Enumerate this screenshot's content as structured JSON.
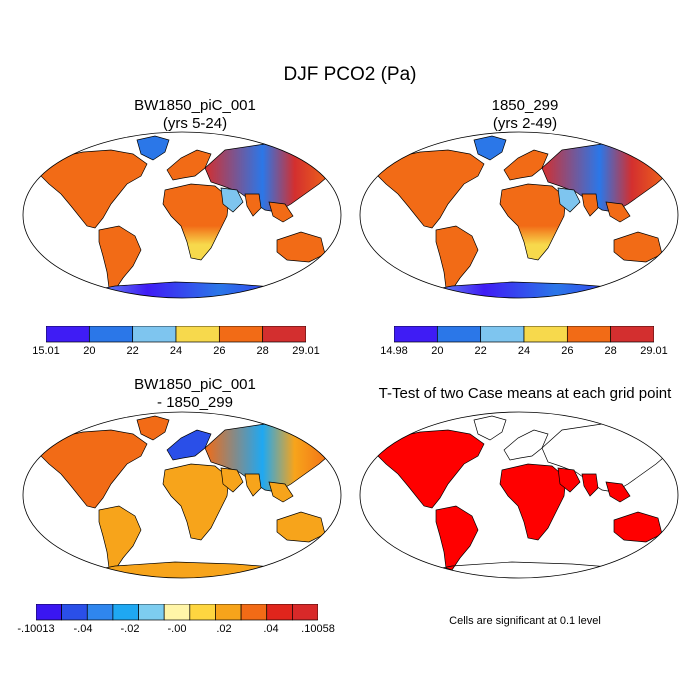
{
  "title": "DJF PCO2 (Pa)",
  "panels": {
    "p1": {
      "title_line1": "BW1850_piC_001",
      "title_line2": "(yrs 5-24)"
    },
    "p2": {
      "title_line1": "1850_299",
      "title_line2": "(yrs 2-49)"
    },
    "p3": {
      "title_line1": "BW1850_piC_001",
      "title_line2": "- 1850_299"
    },
    "p4": {
      "title_line1": "T-Test of two Case means at each grid point"
    }
  },
  "colors": {
    "seq": [
      "#3f1cf5",
      "#2b77e8",
      "#7ec5ef",
      "#f7d94c",
      "#f26b16",
      "#d32f2f"
    ],
    "div": [
      "#3a16f1",
      "#2a4fe8",
      "#2f86ee",
      "#1fa8f2",
      "#7dcdf0",
      "#fff5a8",
      "#fed640",
      "#f7a41b",
      "#f26b16",
      "#e0251c",
      "#d82929"
    ],
    "sig": "#ff0000",
    "ocean": "#ffffff",
    "coast": "#000000"
  },
  "chart_data": [
    {
      "type": "heatmap",
      "panel": "p1",
      "title": "BW1850_piC_001 (yrs 5-24)",
      "colorbar_labels": [
        "15.01",
        "20",
        "22",
        "24",
        "26",
        "28",
        "29.01"
      ],
      "range": [
        15.01,
        29.01
      ],
      "dominant_fill": "#f26b16"
    },
    {
      "type": "heatmap",
      "panel": "p2",
      "title": "1850_299 (yrs 2-49)",
      "colorbar_labels": [
        "14.98",
        "20",
        "22",
        "24",
        "26",
        "28",
        "29.01"
      ],
      "range": [
        14.98,
        29.01
      ],
      "dominant_fill": "#f26b16"
    },
    {
      "type": "heatmap",
      "panel": "p3",
      "title": "BW1850_piC_001 - 1850_299",
      "colorbar_labels": [
        "-.10013",
        "-.04",
        "-.02",
        "-.00",
        ".02",
        ".04",
        ".10058"
      ],
      "range": [
        -0.10013,
        0.10058
      ],
      "dominant_fill": "#f7a41b"
    },
    {
      "type": "heatmap",
      "panel": "p4",
      "title": "T-Test of two Case means at each grid point",
      "significance_level": 0.1,
      "footnote": "Cells are significant at 0.1 level"
    }
  ]
}
